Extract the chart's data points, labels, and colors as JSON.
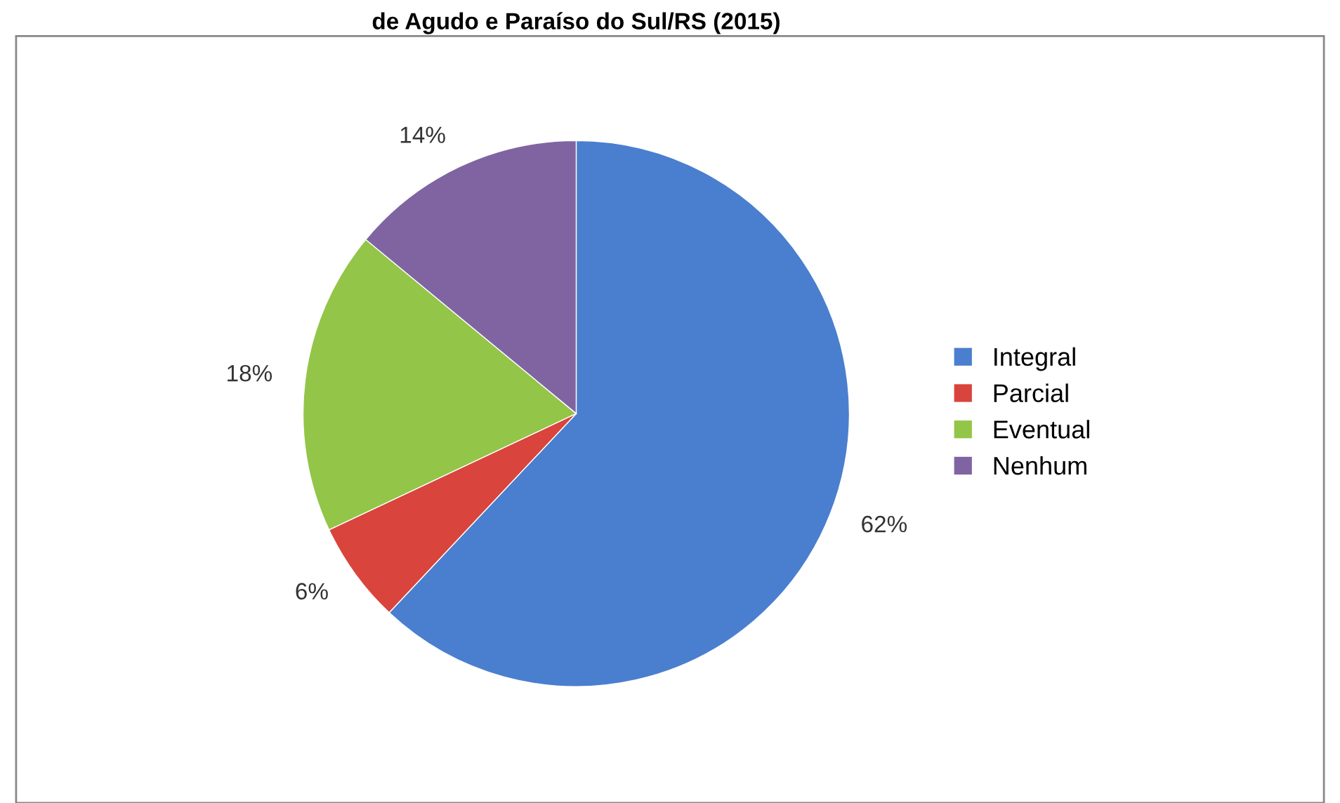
{
  "chart_data": {
    "type": "pie",
    "title": "de Agudo e Paraíso do Sul/RS (2015)",
    "categories": [
      "Integral",
      "Parcial",
      "Eventual",
      "Nenhum"
    ],
    "values": [
      62,
      6,
      18,
      14
    ],
    "colors": [
      "#4a7fcf",
      "#d9443c",
      "#93c548",
      "#8064a2"
    ],
    "value_labels": [
      "62%",
      "6%",
      "18%",
      "14%"
    ],
    "legend": "right"
  }
}
